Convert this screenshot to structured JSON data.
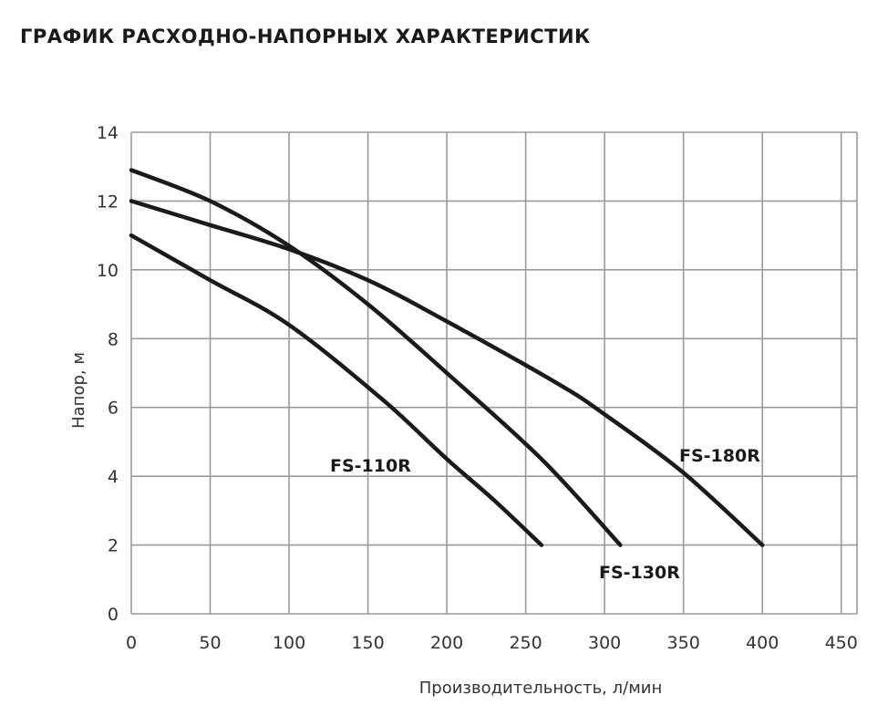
{
  "chart_data": {
    "type": "line",
    "title": "ГРАФИК РАСХОДНО-НАПОРНЫХ ХАРАКТЕРИСТИК",
    "xlabel": "Производительность, л/мин",
    "ylabel": "Напор, м",
    "xlim": [
      0,
      460
    ],
    "ylim": [
      0,
      14
    ],
    "x_ticks": [
      0,
      50,
      100,
      150,
      200,
      250,
      300,
      350,
      400,
      450
    ],
    "y_ticks": [
      0,
      2,
      4,
      6,
      8,
      10,
      12,
      14
    ],
    "grid": true,
    "series": [
      {
        "name": "FS-110R",
        "points": [
          [
            0,
            11
          ],
          [
            50,
            9.7
          ],
          [
            100,
            8.4
          ],
          [
            160,
            6.2
          ],
          [
            200,
            4.5
          ],
          [
            230,
            3.3
          ],
          [
            260,
            2
          ]
        ]
      },
      {
        "name": "FS-130R",
        "points": [
          [
            0,
            12.9
          ],
          [
            50,
            12
          ],
          [
            100,
            10.7
          ],
          [
            150,
            9
          ],
          [
            200,
            7
          ],
          [
            260,
            4.5
          ],
          [
            310,
            2
          ]
        ]
      },
      {
        "name": "FS-180R",
        "points": [
          [
            0,
            12
          ],
          [
            50,
            11.3
          ],
          [
            100,
            10.6
          ],
          [
            150,
            9.7
          ],
          [
            200,
            8.5
          ],
          [
            270,
            6.7
          ],
          [
            300,
            5.8
          ],
          [
            350,
            4.1
          ],
          [
            400,
            2
          ]
        ]
      }
    ]
  }
}
